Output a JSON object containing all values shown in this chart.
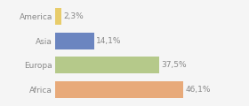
{
  "categories": [
    "Africa",
    "Europa",
    "Asia",
    "America"
  ],
  "values": [
    46.1,
    37.5,
    14.1,
    2.3
  ],
  "labels": [
    "46,1%",
    "37,5%",
    "14,1%",
    "2,3%"
  ],
  "bar_colors": [
    "#e8aa7a",
    "#b5c98a",
    "#6b85c0",
    "#e8cc6a"
  ],
  "background_color": "#f5f5f5",
  "text_color": "#888888",
  "label_fontsize": 6.5,
  "tick_fontsize": 6.5,
  "bar_height": 0.68,
  "xlim": [
    0,
    68
  ]
}
